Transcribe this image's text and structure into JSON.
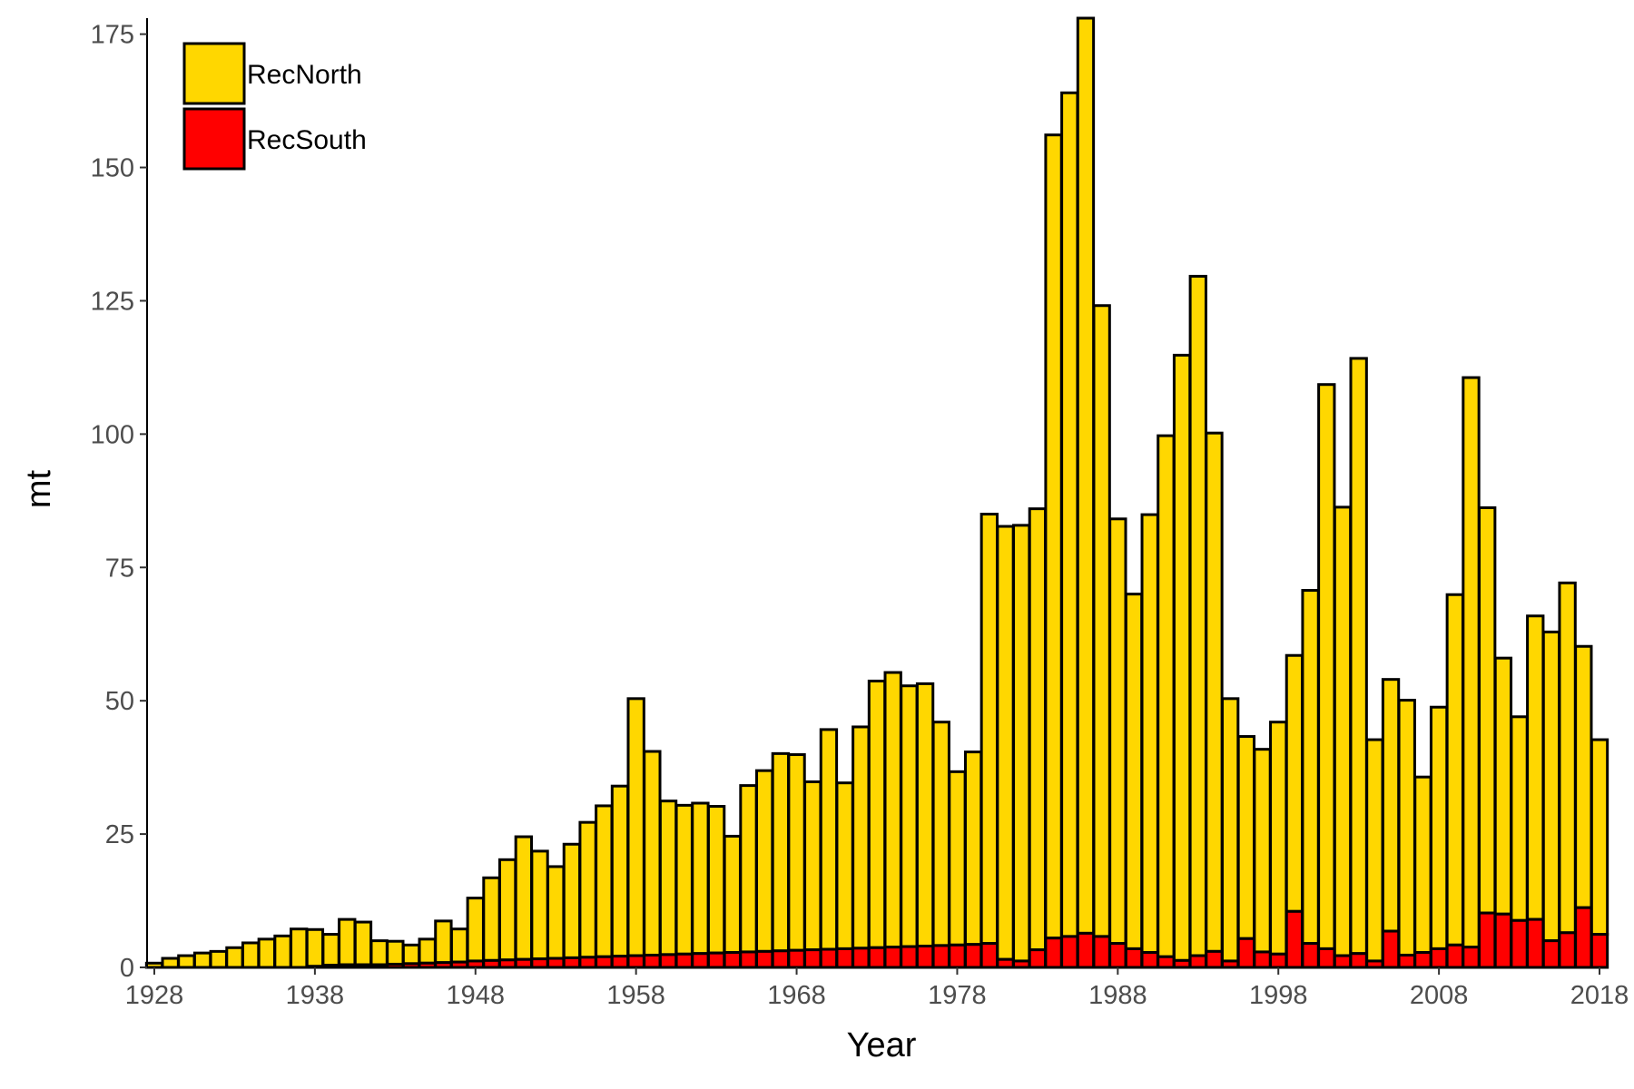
{
  "chart_data": {
    "type": "bar",
    "stacked": true,
    "title": "",
    "xlabel": "Year",
    "ylabel": "mt",
    "ylim": [
      0,
      178
    ],
    "xlim": [
      1928,
      2018
    ],
    "y_ticks": [
      0,
      25,
      50,
      75,
      100,
      125,
      150,
      175
    ],
    "x_ticks": [
      1928,
      1938,
      1948,
      1958,
      1968,
      1978,
      1988,
      1998,
      2008,
      2018
    ],
    "grid": false,
    "legend_position": "top-left",
    "x": [
      1928,
      1929,
      1930,
      1931,
      1932,
      1933,
      1934,
      1935,
      1936,
      1937,
      1938,
      1939,
      1940,
      1941,
      1942,
      1943,
      1944,
      1945,
      1946,
      1947,
      1948,
      1949,
      1950,
      1951,
      1952,
      1953,
      1954,
      1955,
      1956,
      1957,
      1958,
      1959,
      1960,
      1961,
      1962,
      1963,
      1964,
      1965,
      1966,
      1967,
      1968,
      1969,
      1970,
      1971,
      1972,
      1973,
      1974,
      1975,
      1976,
      1977,
      1978,
      1979,
      1980,
      1981,
      1982,
      1983,
      1984,
      1985,
      1986,
      1987,
      1988,
      1989,
      1990,
      1991,
      1992,
      1993,
      1994,
      1995,
      1996,
      1997,
      1998,
      1999,
      2000,
      2001,
      2002,
      2003,
      2004,
      2005,
      2006,
      2007,
      2008,
      2009,
      2010,
      2011,
      2012,
      2013,
      2014,
      2015,
      2016,
      2017,
      2018
    ],
    "series": [
      {
        "name": "RecSouth",
        "color": "#ff0000",
        "values": [
          0,
          0,
          0,
          0,
          0,
          0,
          0,
          0,
          0,
          0,
          0.2,
          0.4,
          0.5,
          0.5,
          0.5,
          0.6,
          0.7,
          0.8,
          0.9,
          1.0,
          1.2,
          1.3,
          1.4,
          1.5,
          1.6,
          1.7,
          1.8,
          1.9,
          2.0,
          2.1,
          2.2,
          2.3,
          2.4,
          2.5,
          2.6,
          2.7,
          2.8,
          2.9,
          3.0,
          3.1,
          3.2,
          3.3,
          3.4,
          3.5,
          3.6,
          3.7,
          3.8,
          3.9,
          4.0,
          4.1,
          4.2,
          4.3,
          4.5,
          1.5,
          1.2,
          3.3,
          5.5,
          5.8,
          6.4,
          5.8,
          4.5,
          3.5,
          2.8,
          2.0,
          1.3,
          2.2,
          3.0,
          1.2,
          5.4,
          2.9,
          2.5,
          10.5,
          4.5,
          3.5,
          2.2,
          2.6,
          1.2,
          6.8,
          2.3,
          2.8,
          3.5,
          4.2,
          3.8,
          10.2,
          10.0,
          8.8,
          9.0,
          5.0,
          6.5,
          11.2,
          6.2
        ]
      },
      {
        "name": "RecNorth",
        "color": "#ffd700",
        "values": [
          0.8,
          1.7,
          2.2,
          2.7,
          3.0,
          3.7,
          4.6,
          5.3,
          5.9,
          7.2,
          6.9,
          5.8,
          8.5,
          8.0,
          4.5,
          4.3,
          3.5,
          4.5,
          7.8,
          6.2,
          11.8,
          15.5,
          18.8,
          23.0,
          20.2,
          17.2,
          21.3,
          25.3,
          28.3,
          31.9,
          48.2,
          38.2,
          28.8,
          27.9,
          28.2,
          27.5,
          21.8,
          31.2,
          33.9,
          37.0,
          36.7,
          31.5,
          41.2,
          31.1,
          41.5,
          50.0,
          51.5,
          48.9,
          49.2,
          41.9,
          32.5,
          36.1,
          80.5,
          81.2,
          81.7,
          82.7,
          150.6,
          158.2,
          171.6,
          118.3,
          79.6,
          66.5,
          82.1,
          97.7,
          113.5,
          127.4,
          97.2,
          49.2,
          37.9,
          38.0,
          43.5,
          48.0,
          66.2,
          105.8,
          84.1,
          111.6,
          41.5,
          47.2,
          47.8,
          32.9,
          45.3,
          65.7,
          106.8,
          76.0,
          48.0,
          38.2,
          56.9,
          57.9,
          65.6,
          49.0,
          36.5
        ]
      }
    ]
  },
  "legend": [
    {
      "label": "RecNorth",
      "color": "#ffd700"
    },
    {
      "label": "RecSouth",
      "color": "#ff0000"
    }
  ]
}
